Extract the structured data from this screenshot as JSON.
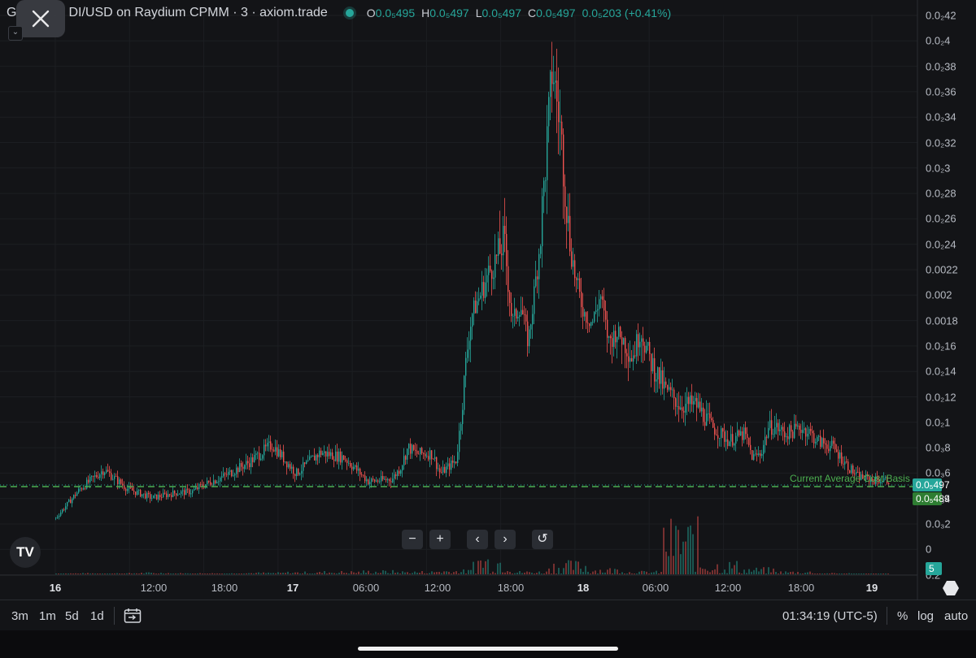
{
  "header": {
    "symbol_prefix": "G",
    "symbol_suffix": "DI/USD on Raydium CPMM · 3 · axiom.trade",
    "ohlc": [
      {
        "k": "O",
        "v": "0.0₅495"
      },
      {
        "k": "H",
        "v": "0.0₅497"
      },
      {
        "k": "L",
        "v": "0.0₅497"
      },
      {
        "k": "C",
        "v": "0.0₅497"
      }
    ],
    "change": "0.0₅203 (+0.41%)"
  },
  "chart_data": {
    "type": "line",
    "x_ticks": [
      "16",
      "12:00",
      "18:00",
      "17",
      "06:00",
      "12:00",
      "18:00",
      "18",
      "06:00",
      "12:00",
      "18:00",
      "19"
    ],
    "y_ticks": [
      "0.0₂42",
      "0.0₂4",
      "0.0₂38",
      "0.0₂36",
      "0.0₂34",
      "0.0₂32",
      "0.0₂3",
      "0.0₂28",
      "0.0₂26",
      "0.0₂24",
      "0.0022",
      "0.002",
      "0.0018",
      "0.0₂16",
      "0.0₂14",
      "0.0₂12",
      "0.0₂1",
      "0.0₃8",
      "0.0₃6",
      "0.0₃4",
      "0.0₃2",
      "0",
      "0.2"
    ],
    "series": [
      {
        "x": [
          0,
          6,
          12,
          18,
          24,
          30,
          34,
          36,
          42,
          48,
          54,
          60,
          66,
          72,
          78,
          82,
          84,
          86,
          88,
          90,
          94,
          96,
          100,
          104,
          108,
          112,
          114,
          116,
          118,
          120,
          122,
          124,
          126,
          128,
          130,
          132,
          134,
          136,
          138,
          140,
          142,
          144,
          146,
          148,
          150,
          152,
          156,
          160,
          164,
          168,
          172,
          174,
          176,
          178,
          180,
          182,
          184,
          186,
          188,
          190,
          194,
          198,
          200,
          204,
          208
        ],
        "values": [
          0.00025,
          0.00048,
          0.00063,
          0.00048,
          0.00041,
          0.00045,
          0.00046,
          0.0005,
          0.00058,
          0.00068,
          0.00082,
          0.0006,
          0.00076,
          0.00072,
          0.00054,
          0.00055,
          0.00056,
          0.00064,
          0.0008,
          0.00075,
          0.00075,
          0.0006,
          0.0007,
          0.0018,
          0.0022,
          0.0025,
          0.0017,
          0.0019,
          0.0015,
          0.0022,
          0.0029,
          0.0038,
          0.0033,
          0.0026,
          0.0021,
          0.0018,
          0.0017,
          0.002,
          0.0015,
          0.0016,
          0.0015,
          0.0014,
          0.0016,
          0.0014,
          0.0013,
          0.0012,
          0.0011,
          0.0011,
          0.00095,
          0.00085,
          0.0009,
          0.00072,
          0.00075,
          0.00095,
          0.00095,
          0.0009,
          0.00092,
          0.00095,
          0.00092,
          0.00085,
          0.0008,
          0.00065,
          0.00058,
          0.00055,
          0.00055
        ]
      }
    ],
    "volume_hint": [
      0.02,
      0.02,
      0.03,
      0.02,
      0.02,
      0.03,
      0.04,
      0.05,
      0.06,
      0.05,
      0.07,
      0.3,
      0.05,
      0.2,
      0.1,
      0.05,
      0.8,
      0.2,
      0.1,
      0.05,
      0.02,
      0.01
    ],
    "cost_basis_label": "Current Average Cost Basis",
    "last_price": "0.0₅497",
    "cost_basis_price": "0.0₅489",
    "volume_badge": "5",
    "colors": {
      "up": "#26a69a",
      "down": "#ef5350",
      "cost_basis": "#4caf50"
    }
  },
  "controls": {
    "minus": "−",
    "plus": "+",
    "left": "‹",
    "right": "›",
    "reset": "↺"
  },
  "logo": "TV",
  "bottom": {
    "ranges": [
      "3m",
      "1m",
      "5d",
      "1d"
    ],
    "time": "01:34:19 (UTC-5)",
    "percent": "%",
    "log": "log",
    "auto": "auto"
  }
}
